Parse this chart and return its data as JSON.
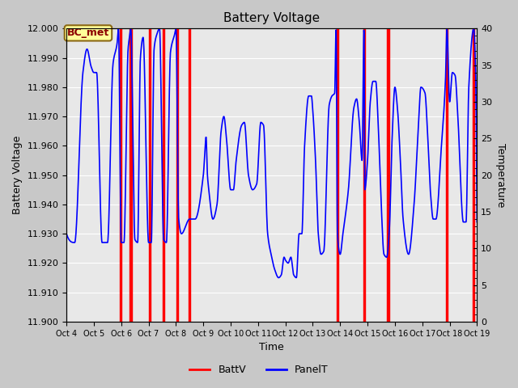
{
  "title": "Battery Voltage",
  "ylabel_left": "Battery Voltage",
  "ylabel_right": "Temperature",
  "xlabel": "Time",
  "ylim_left": [
    11.9,
    12.0
  ],
  "ylim_right": [
    0,
    40
  ],
  "yticks_left": [
    11.9,
    11.91,
    11.92,
    11.93,
    11.94,
    11.95,
    11.96,
    11.97,
    11.98,
    11.99,
    12.0
  ],
  "yticks_right": [
    0,
    5,
    10,
    15,
    20,
    25,
    30,
    35,
    40
  ],
  "x_tick_labels": [
    "Oct 4",
    "Oct 5",
    "Oct 6",
    "Oct 7",
    "Oct 8",
    "Oct 9",
    "Oct 10",
    "Oct 11",
    "Oct 12",
    "Oct 13",
    "Oct 14",
    "Oct 15",
    "Oct 16",
    "Oct 17",
    "Oct 18",
    "Oct 19"
  ],
  "background_color": "#c8c8c8",
  "plot_bg_color": "#e8e8e8",
  "annotation_label": "BC_met",
  "annotation_bg": "#ffff99",
  "annotation_border": "#8b6914",
  "batt_color": "#ff0000",
  "panel_color": "#0000ff",
  "legend_batt": "BattV",
  "legend_panel": "PanelT",
  "red_bar_positions": [
    5.97,
    6.35,
    7.05,
    7.55,
    8.05,
    8.5,
    13.9,
    14.87,
    15.75,
    17.9,
    18.88
  ],
  "red_bar_width": 0.07,
  "figsize": [
    6.4,
    4.8
  ],
  "dpi": 100
}
